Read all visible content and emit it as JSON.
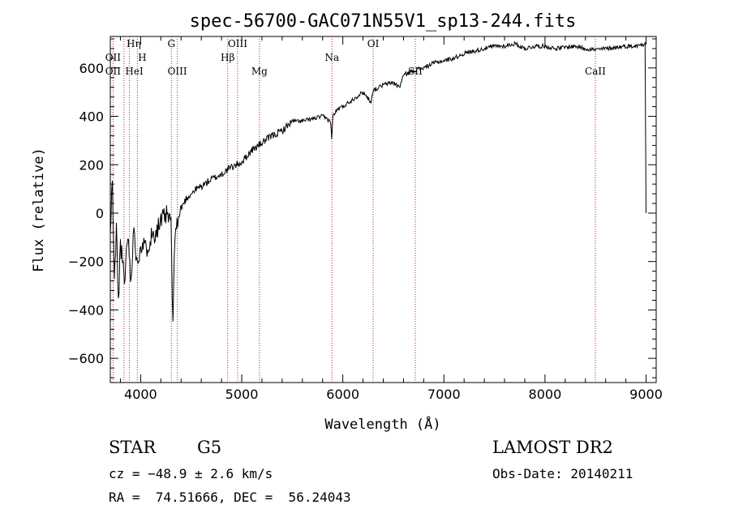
{
  "chart_data": {
    "type": "line",
    "title": "spec-56700-GAC071N55V1_sp13-244.fits",
    "xlabel": "Wavelength (Å)",
    "ylabel": "Flux (relative)",
    "xlim": [
      3700,
      9100
    ],
    "ylim": [
      -700,
      730
    ],
    "xticks": [
      4000,
      5000,
      6000,
      7000,
      8000,
      9000
    ],
    "yticks": [
      -600,
      -400,
      -200,
      0,
      200,
      400,
      600
    ],
    "grid": false,
    "series": [
      {
        "x": [
          3700,
          3720,
          3740,
          3760,
          3780,
          3800,
          3820,
          3840,
          3860,
          3880,
          3900,
          3920,
          3940,
          3960,
          3980,
          4000,
          4050,
          4100,
          4150,
          4200,
          4250,
          4300,
          4320,
          4340,
          4360,
          4400,
          4450,
          4500,
          4550,
          4600,
          4700,
          4800,
          4860,
          4900,
          5000,
          5100,
          5200,
          5300,
          5400,
          5500,
          5600,
          5700,
          5800,
          5880,
          5890,
          5900,
          5950,
          6000,
          6100,
          6200,
          6280,
          6300,
          6320,
          6400,
          6500,
          6560,
          6600,
          6700,
          6800,
          6900,
          7000,
          7100,
          7200,
          7300,
          7400,
          7500,
          7600,
          7700,
          7800,
          7900,
          8000,
          8100,
          8200,
          8300,
          8400,
          8500,
          8600,
          8700,
          8800,
          8900,
          8980,
          8990,
          9000
        ],
        "values": [
          -100,
          150,
          -300,
          -50,
          -380,
          -120,
          -200,
          -300,
          -150,
          -90,
          -280,
          -150,
          -60,
          -200,
          -180,
          -120,
          -150,
          -100,
          -70,
          -40,
          -10,
          -30,
          -480,
          -60,
          -50,
          20,
          60,
          80,
          100,
          110,
          140,
          160,
          180,
          190,
          210,
          260,
          290,
          320,
          340,
          380,
          380,
          390,
          400,
          380,
          300,
          400,
          430,
          440,
          470,
          500,
          460,
          510,
          510,
          530,
          540,
          520,
          570,
          590,
          600,
          620,
          630,
          640,
          660,
          670,
          680,
          690,
          690,
          700,
          680,
          690,
          690,
          680,
          685,
          690,
          680,
          675,
          680,
          685,
          690,
          690,
          700,
          710,
          0
        ]
      }
    ],
    "annotations": [
      {
        "label": "Hη",
        "x": 3835
      },
      {
        "label": "OII",
        "x": 3727
      },
      {
        "label": "OII",
        "x": 3727
      },
      {
        "label": "HeI",
        "x": 3889
      },
      {
        "label": "H",
        "x": 3968
      },
      {
        "label": "G",
        "x": 4304
      },
      {
        "label": "OIII",
        "x": 4363
      },
      {
        "label": "Hβ",
        "x": 4861
      },
      {
        "label": "OIII",
        "x": 4959
      },
      {
        "label": "Mg",
        "x": 5175
      },
      {
        "label": "Na",
        "x": 5893
      },
      {
        "label": "OI",
        "x": 6300
      },
      {
        "label": "SII",
        "x": 6717
      },
      {
        "label": "CaII",
        "x": 8498
      }
    ]
  },
  "info": {
    "class": "STAR",
    "subclass": "G5",
    "survey": "LAMOST DR2",
    "cz": "cz = −48.9 ± 2.6 km/s",
    "obs_date": "Obs-Date: 20140211",
    "radec": "RA =  74.51666, DEC =  56.24043"
  }
}
